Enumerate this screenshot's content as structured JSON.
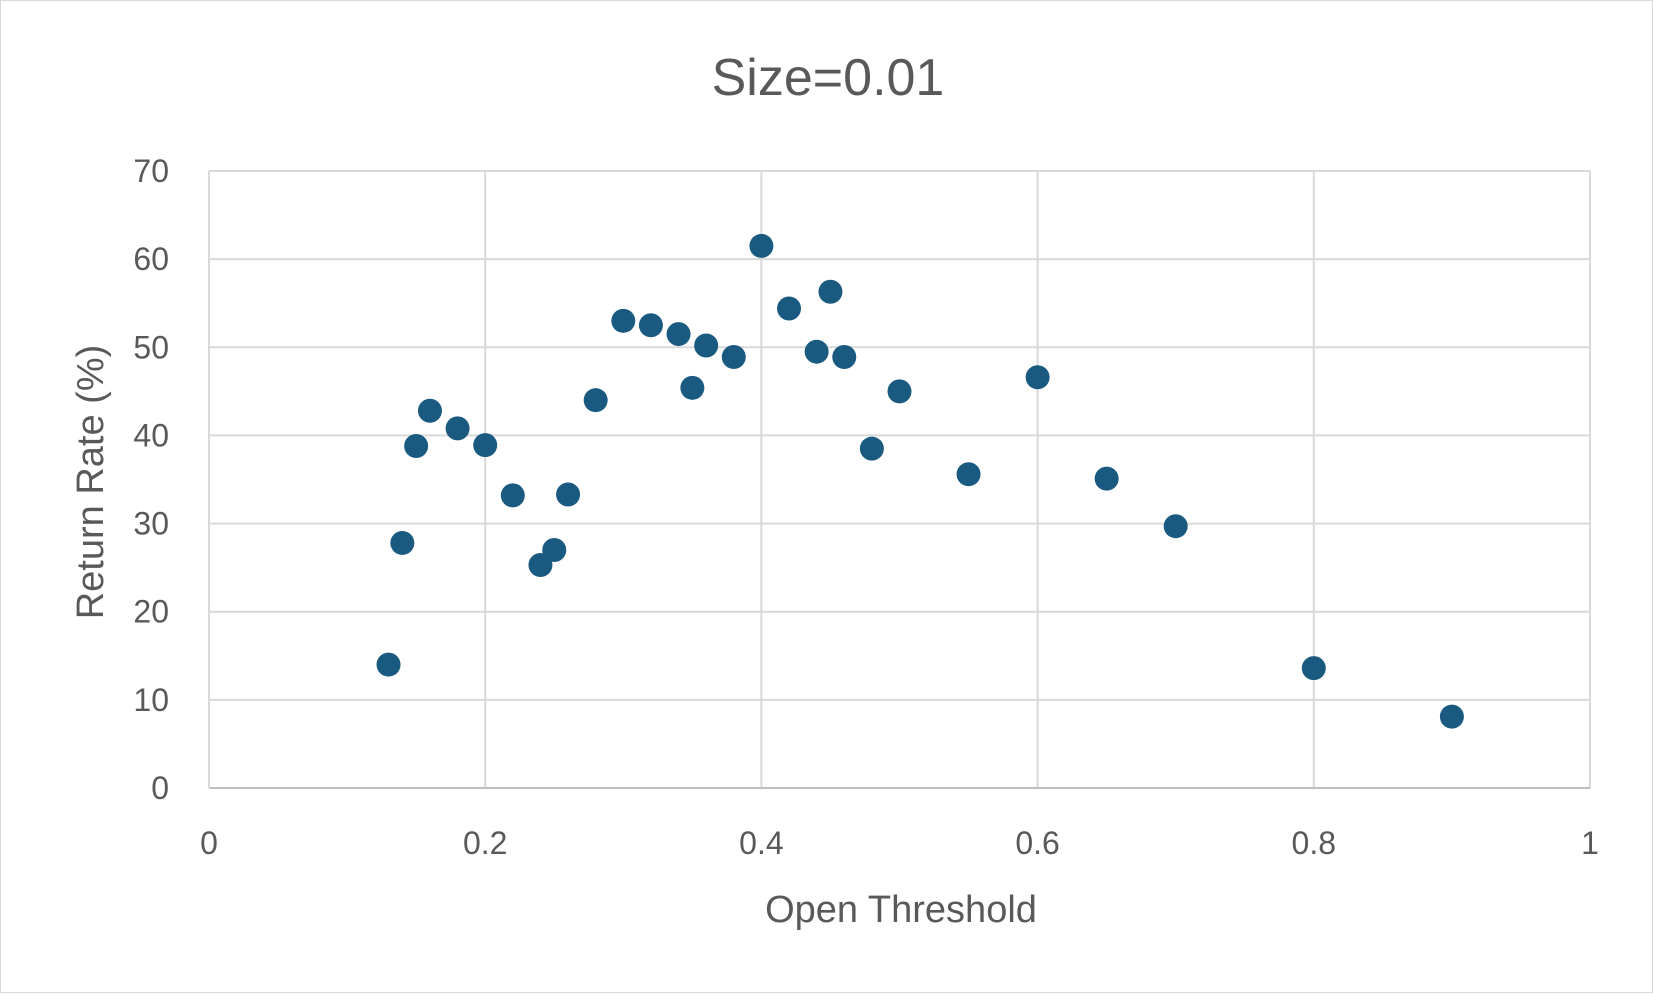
{
  "chart_data": {
    "type": "scatter",
    "title": "Size=0.01",
    "xlabel": "Open Threshold",
    "ylabel": "Return Rate (%)",
    "xlim": [
      0,
      1
    ],
    "ylim": [
      0,
      70
    ],
    "x_ticks": [
      "0",
      "0.2",
      "0.4",
      "0.6",
      "0.8",
      "1"
    ],
    "x_tick_values": [
      0,
      0.2,
      0.4,
      0.6,
      0.8,
      1
    ],
    "y_ticks": [
      "0",
      "10",
      "20",
      "30",
      "40",
      "50",
      "60",
      "70"
    ],
    "y_tick_values": [
      0,
      10,
      20,
      30,
      40,
      50,
      60,
      70
    ],
    "grid": true,
    "legend": "none",
    "marker_color": "#1a5a80",
    "series": [
      {
        "points": [
          {
            "x": 0.13,
            "y": 14.0
          },
          {
            "x": 0.14,
            "y": 27.8
          },
          {
            "x": 0.15,
            "y": 38.8
          },
          {
            "x": 0.16,
            "y": 42.8
          },
          {
            "x": 0.18,
            "y": 40.8
          },
          {
            "x": 0.2,
            "y": 38.9
          },
          {
            "x": 0.22,
            "y": 33.2
          },
          {
            "x": 0.24,
            "y": 25.3
          },
          {
            "x": 0.25,
            "y": 27.0
          },
          {
            "x": 0.26,
            "y": 33.3
          },
          {
            "x": 0.28,
            "y": 44.0
          },
          {
            "x": 0.3,
            "y": 53.0
          },
          {
            "x": 0.32,
            "y": 52.5
          },
          {
            "x": 0.34,
            "y": 51.5
          },
          {
            "x": 0.35,
            "y": 45.4
          },
          {
            "x": 0.36,
            "y": 50.2
          },
          {
            "x": 0.38,
            "y": 48.9
          },
          {
            "x": 0.4,
            "y": 61.5
          },
          {
            "x": 0.42,
            "y": 54.4
          },
          {
            "x": 0.44,
            "y": 49.5
          },
          {
            "x": 0.45,
            "y": 56.3
          },
          {
            "x": 0.46,
            "y": 48.9
          },
          {
            "x": 0.48,
            "y": 38.5
          },
          {
            "x": 0.5,
            "y": 45.0
          },
          {
            "x": 0.55,
            "y": 35.6
          },
          {
            "x": 0.6,
            "y": 46.6
          },
          {
            "x": 0.65,
            "y": 35.1
          },
          {
            "x": 0.7,
            "y": 29.7
          },
          {
            "x": 0.8,
            "y": 13.6
          },
          {
            "x": 0.9,
            "y": 8.1
          }
        ]
      }
    ]
  }
}
